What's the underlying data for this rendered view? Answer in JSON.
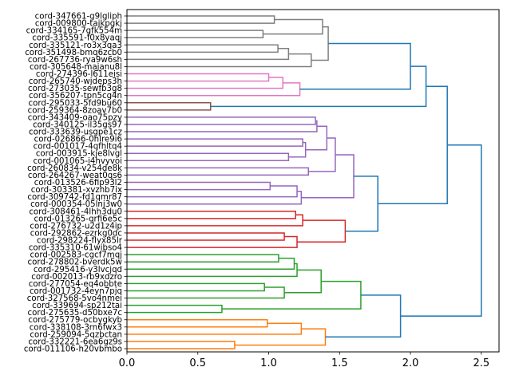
{
  "chart_data": {
    "type": "dendrogram",
    "orientation": "left-to-right (root at right)",
    "title": "",
    "xlabel": "",
    "ylabel": "",
    "xlim": [
      0,
      2.625
    ],
    "xticks": [
      "0.0",
      "0.5",
      "1.0",
      "1.5",
      "2.0",
      "2.5"
    ],
    "xtick_values": [
      0,
      0.5,
      1.0,
      1.5,
      2.0,
      2.5
    ],
    "above_threshold_color": "#1f77b4",
    "leaves": [
      "cord-347661-g9lgliph",
      "cord-009800-tajkpgkj",
      "cord-334165-7gfk554m",
      "cord-335591-f0x8yaqj",
      "cord-335121-ro3x3qa3",
      "cord-351498-bmq6zcb0",
      "cord-267736-rya9w6sh",
      "cord-305648-majanu8l",
      "cord-274396-l611eisi",
      "cord-265740-wjdeps3h",
      "cord-273035-sewfb3g8",
      "cord-356207-tpn5cg4n",
      "cord-295033-5fd9bu60",
      "cord-259364-8zoav7b0",
      "cord-343409-oao75pzy",
      "cord-340125-il35gs97",
      "cord-333639-usgpe1cz",
      "cord-026866-0hlre9i6",
      "cord-001017-4qfhltq4",
      "cord-003915-kje8lvgl",
      "cord-001065-i4hvyvoi",
      "cord-260834-v254de8k",
      "cord-264267-weat0qs6",
      "cord-013526-6fip93l2",
      "cord-303381-xvzhb7ix",
      "cord-309742-fd1qmr87",
      "cord-000354-05lnj3w0",
      "cord-308461-4lhh3du0",
      "cord-013265-qrfi6e5c",
      "cord-276732-u2d1z4ip",
      "cord-292862-ezrkg0dc",
      "cord-298224-flyx85lr",
      "cord-335310-61wibso4",
      "cord-002583-cgcf7mqj",
      "cord-278802-bverdk5w",
      "cord-295416-y3lvcjqd",
      "cord-002013-rb9xdzro",
      "cord-277054-eq4obbte",
      "cord-001732-4eyn7pjq",
      "cord-327568-5vo4nmei",
      "cord-339694-sp212tai",
      "cord-275635-d50bxe7c",
      "cord-275779-ocbygkyb",
      "cord-338108-3rn6fwx3",
      "cord-259094-5qzbctan",
      "cord-332221-6ea6gz9s",
      "cord-011106-h20vbmbo"
    ],
    "tree": {
      "h": 2.5,
      "k": [
        {
          "h": 2.26,
          "k": [
            {
              "h": 2.11,
              "k": [
                {
                  "h": 2.0,
                  "k": [
                    {
                      "h": 1.42,
                      "c": "#7f7f7f",
                      "k": [
                        {
                          "h": 1.38,
                          "k": [
                            {
                              "h": 1.04,
                              "k": [
                                0,
                                1
                              ]
                            },
                            {
                              "h": 0.96,
                              "k": [
                                2,
                                3
                              ]
                            }
                          ]
                        },
                        {
                          "h": 1.3,
                          "k": [
                            {
                              "h": 1.14,
                              "k": [
                                {
                                  "h": 1.065,
                                  "k": [
                                    4,
                                    5
                                  ]
                                },
                                6
                              ]
                            },
                            7
                          ]
                        }
                      ]
                    },
                    {
                      "h": 1.22,
                      "c": "#e377c2",
                      "k": [
                        {
                          "h": 1.1,
                          "k": [
                            {
                              "h": 1.0,
                              "k": [
                                8,
                                9
                              ]
                            },
                            10
                          ]
                        },
                        11
                      ]
                    }
                  ]
                },
                {
                  "h": 0.59,
                  "c": "#8c564b",
                  "k": [
                    12,
                    13
                  ]
                }
              ]
            },
            {
              "h": 1.77,
              "k": [
                {
                  "h": 1.6,
                  "c": "#9467bd",
                  "k": [
                    {
                      "h": 1.47,
                      "k": [
                        {
                          "h": 1.41,
                          "k": [
                            {
                              "h": 1.34,
                              "k": [
                                {
                                  "h": 1.33,
                                  "k": [
                                    14,
                                    15
                                  ]
                                },
                                16
                              ]
                            },
                            {
                              "h": 1.26,
                              "k": [
                                {
                                  "h": 1.24,
                                  "k": [
                                    17,
                                    18
                                  ]
                                },
                                {
                                  "h": 1.14,
                                  "k": [
                                    19,
                                    20
                                  ]
                                }
                              ]
                            }
                          ]
                        },
                        {
                          "h": 1.28,
                          "k": [
                            21,
                            22
                          ]
                        }
                      ]
                    },
                    {
                      "h": 1.23,
                      "k": [
                        {
                          "h": 1.2,
                          "k": [
                            {
                              "h": 1.01,
                              "k": [
                                23,
                                24
                              ]
                            },
                            25
                          ]
                        },
                        26
                      ]
                    }
                  ]
                },
                {
                  "h": 1.54,
                  "c": "#d62728",
                  "k": [
                    {
                      "h": 1.24,
                      "k": [
                        {
                          "h": 1.19,
                          "k": [
                            27,
                            28
                          ]
                        },
                        29
                      ]
                    },
                    {
                      "h": 1.2,
                      "k": [
                        {
                          "h": 1.11,
                          "k": [
                            30,
                            31
                          ]
                        },
                        32
                      ]
                    }
                  ]
                }
              ]
            }
          ]
        },
        {
          "h": 1.93,
          "k": [
            {
              "h": 1.65,
              "c": "#2ca02c",
              "k": [
                {
                  "h": 1.37,
                  "k": [
                    {
                      "h": 1.2,
                      "k": [
                        {
                          "h": 1.18,
                          "k": [
                            {
                              "h": 1.07,
                              "k": [
                                33,
                                34
                              ]
                            },
                            35
                          ]
                        },
                        36
                      ]
                    },
                    {
                      "h": 1.11,
                      "k": [
                        {
                          "h": 0.97,
                          "k": [
                            37,
                            38
                          ]
                        },
                        39
                      ]
                    }
                  ]
                },
                {
                  "h": 0.67,
                  "k": [
                    40,
                    41
                  ]
                }
              ]
            },
            {
              "h": 1.4,
              "c": "#ff7f0e",
              "k": [
                {
                  "h": 1.23,
                  "k": [
                    {
                      "h": 0.99,
                      "k": [
                        42,
                        43
                      ]
                    },
                    44
                  ]
                },
                {
                  "h": 0.76,
                  "k": [
                    45,
                    46
                  ]
                }
              ]
            }
          ]
        }
      ]
    }
  }
}
